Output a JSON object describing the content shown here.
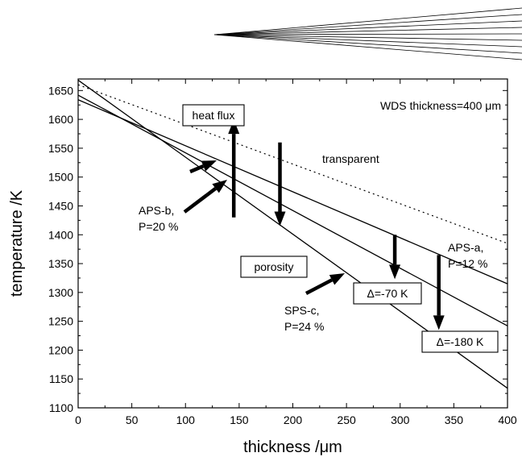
{
  "chart_data": {
    "type": "line",
    "title": "",
    "xlabel": "thickness /μm",
    "ylabel": "temperature /K",
    "xlim": [
      0,
      400
    ],
    "ylim": [
      1100,
      1670
    ],
    "x_ticks": [
      0,
      50,
      100,
      150,
      200,
      250,
      300,
      350,
      400
    ],
    "y_ticks": [
      1100,
      1150,
      1200,
      1250,
      1300,
      1350,
      1400,
      1450,
      1500,
      1550,
      1600,
      1650
    ],
    "grid": false,
    "legend": "none",
    "series": [
      {
        "name": "APS-a",
        "style": "solid",
        "x": [
          0,
          400
        ],
        "y": [
          1634,
          1315
        ]
      },
      {
        "name": "APS-b",
        "style": "solid",
        "x": [
          0,
          400
        ],
        "y": [
          1642,
          1242
        ]
      },
      {
        "name": "SPS-c",
        "style": "solid",
        "x": [
          0,
          400
        ],
        "y": [
          1668,
          1134
        ]
      },
      {
        "name": "transparent",
        "style": "dotted",
        "x": [
          0,
          400
        ],
        "y": [
          1660,
          1385
        ]
      }
    ],
    "vertical_arrows": [
      {
        "name": "heat-flux",
        "x": 145,
        "from": 1430,
        "to": 1600
      },
      {
        "name": "porosity",
        "x": 188,
        "from": 1560,
        "to": 1415
      },
      {
        "name": "delta-70",
        "x": 295,
        "from": 1400,
        "to": 1323
      },
      {
        "name": "delta-180",
        "x": 336,
        "from": 1365,
        "to": 1235
      }
    ],
    "annotations": {
      "wds_thickness": "WDS thickness=400 μm",
      "heat_flux": "heat flux",
      "porosity": "porosity",
      "transparent": "transparent",
      "aps_a_name": "APS-a,",
      "aps_a_p": "P=12 %",
      "aps_b_name": "APS-b,",
      "aps_b_p": "P=20 %",
      "sps_c_name": "SPS-c,",
      "sps_c_p": "P=24 %",
      "delta_70": "Δ=-70 K",
      "delta_180": "Δ=-180 K"
    }
  }
}
